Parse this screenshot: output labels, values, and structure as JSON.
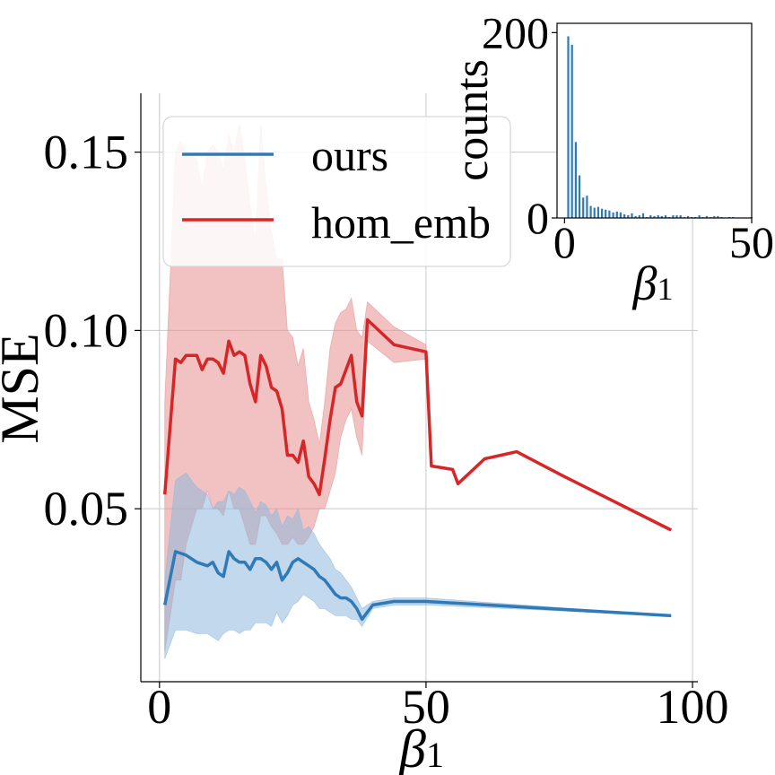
{
  "chart_data": [
    {
      "type": "line",
      "xlabel": "β",
      "xlabel_sub": "1",
      "ylabel": "MSE",
      "xlim": [
        -3.5,
        101
      ],
      "ylim": [
        0.0015,
        0.1665
      ],
      "xticks": [
        0,
        50,
        100
      ],
      "xtick_labels": [
        "0",
        "50",
        "100"
      ],
      "yticks": [
        0.05,
        0.1,
        0.15
      ],
      "ytick_labels": [
        "0.05",
        "0.10",
        "0.15"
      ],
      "grid": true,
      "legend": {
        "placement": "upper-left",
        "entries": [
          "ours",
          "hom_emb"
        ]
      },
      "series": [
        {
          "name": "ours",
          "color": "#2f7ab8",
          "band_color": "#8fb8dc",
          "x": [
            1,
            3,
            5,
            7,
            9,
            10,
            11,
            12,
            13,
            14,
            15,
            16,
            17,
            18,
            19,
            20,
            21,
            22,
            23,
            24,
            25,
            26,
            27,
            28,
            29,
            30,
            31,
            32,
            33,
            34,
            35,
            36,
            37,
            38,
            40,
            44,
            50,
            96
          ],
          "y": [
            0.023,
            0.038,
            0.037,
            0.035,
            0.034,
            0.035,
            0.032,
            0.031,
            0.038,
            0.036,
            0.035,
            0.035,
            0.033,
            0.036,
            0.036,
            0.035,
            0.033,
            0.035,
            0.03,
            0.032,
            0.035,
            0.036,
            0.035,
            0.034,
            0.033,
            0.031,
            0.03,
            0.028,
            0.026,
            0.025,
            0.025,
            0.024,
            0.022,
            0.019,
            0.023,
            0.024,
            0.024,
            0.02
          ],
          "lower": [
            0.008,
            0.016,
            0.016,
            0.015,
            0.015,
            0.014,
            0.013,
            0.015,
            0.016,
            0.016,
            0.015,
            0.016,
            0.016,
            0.018,
            0.018,
            0.018,
            0.017,
            0.021,
            0.018,
            0.02,
            0.023,
            0.024,
            0.026,
            0.025,
            0.024,
            0.022,
            0.022,
            0.021,
            0.02,
            0.02,
            0.02,
            0.019,
            0.019,
            0.017,
            0.022,
            0.023,
            0.023,
            0.02
          ],
          "upper": [
            0.03,
            0.058,
            0.06,
            0.056,
            0.054,
            0.05,
            0.052,
            0.052,
            0.055,
            0.054,
            0.056,
            0.055,
            0.052,
            0.049,
            0.052,
            0.051,
            0.048,
            0.05,
            0.045,
            0.048,
            0.047,
            0.05,
            0.044,
            0.045,
            0.043,
            0.04,
            0.038,
            0.036,
            0.033,
            0.032,
            0.03,
            0.028,
            0.025,
            0.022,
            0.024,
            0.025,
            0.025,
            0.02
          ]
        },
        {
          "name": "hom_emb",
          "color": "#d62728",
          "band_color": "#e88e90",
          "x": [
            1,
            3,
            4,
            5,
            7,
            8,
            9,
            10,
            11,
            12,
            13,
            14,
            15,
            16,
            17,
            18,
            19,
            20,
            21,
            22,
            23,
            24,
            25,
            26,
            27,
            28,
            29,
            30,
            31,
            32,
            33,
            34,
            35,
            36,
            37,
            38,
            39,
            44,
            50,
            51,
            55,
            56,
            61,
            67,
            76,
            96
          ],
          "y": [
            0.054,
            0.092,
            0.091,
            0.093,
            0.093,
            0.089,
            0.092,
            0.092,
            0.091,
            0.088,
            0.097,
            0.093,
            0.094,
            0.093,
            0.085,
            0.08,
            0.093,
            0.09,
            0.084,
            0.083,
            0.078,
            0.065,
            0.065,
            0.063,
            0.069,
            0.059,
            0.057,
            0.054,
            0.064,
            0.075,
            0.084,
            0.085,
            0.089,
            0.093,
            0.08,
            0.076,
            0.103,
            0.096,
            0.094,
            0.062,
            0.061,
            0.057,
            0.064,
            0.066,
            0.059,
            0.044
          ],
          "lower": [
            0.01,
            0.03,
            0.03,
            0.04,
            0.05,
            0.05,
            0.055,
            0.05,
            0.05,
            0.048,
            0.055,
            0.05,
            0.05,
            0.045,
            0.04,
            0.04,
            0.048,
            0.048,
            0.045,
            0.043,
            0.04,
            0.04,
            0.042,
            0.04,
            0.04,
            0.042,
            0.045,
            0.05,
            0.05,
            0.055,
            0.06,
            0.07,
            0.075,
            0.078,
            0.07,
            0.065,
            0.097,
            0.091,
            0.092,
            0.062,
            0.061,
            0.057,
            0.064,
            0.066,
            0.059,
            0.044
          ],
          "upper": [
            0.08,
            0.15,
            0.153,
            0.15,
            0.148,
            0.14,
            0.15,
            0.152,
            0.15,
            0.145,
            0.155,
            0.15,
            0.158,
            0.148,
            0.135,
            0.125,
            0.158,
            0.14,
            0.128,
            0.12,
            0.12,
            0.1,
            0.098,
            0.09,
            0.095,
            0.08,
            0.075,
            0.068,
            0.08,
            0.095,
            0.102,
            0.105,
            0.106,
            0.109,
            0.1,
            0.098,
            0.108,
            0.101,
            0.096,
            0.062,
            0.061,
            0.057,
            0.064,
            0.066,
            0.059,
            0.044
          ]
        }
      ]
    },
    {
      "type": "bar",
      "inset": true,
      "xlabel": "β",
      "xlabel_sub": "1",
      "ylabel": "counts",
      "xlim": [
        -2,
        50
      ],
      "ylim": [
        0,
        210
      ],
      "xticks": [
        0,
        50
      ],
      "xtick_labels": [
        "0",
        "50"
      ],
      "yticks": [
        0,
        200
      ],
      "ytick_labels": [
        "0",
        "200"
      ],
      "color": "#2f7ab8",
      "x": [
        1,
        2,
        3,
        4,
        5,
        6,
        7,
        8,
        9,
        10,
        11,
        12,
        13,
        14,
        15,
        16,
        17,
        18,
        19,
        20,
        21,
        22,
        23,
        24,
        25,
        26,
        27,
        28,
        29,
        30,
        31,
        32,
        33,
        34,
        35,
        36,
        37,
        38,
        39,
        40,
        41,
        42,
        44,
        45,
        50
      ],
      "values": [
        196,
        187,
        82,
        46,
        22,
        24,
        13,
        11,
        12,
        10,
        9,
        8,
        6,
        7,
        6,
        4,
        3,
        5,
        2,
        3,
        5,
        1,
        3,
        2,
        3,
        2,
        3,
        1,
        3,
        3,
        3,
        1,
        2,
        1,
        1,
        3,
        1,
        2,
        1,
        2,
        2,
        1,
        1,
        1,
        1
      ]
    }
  ]
}
